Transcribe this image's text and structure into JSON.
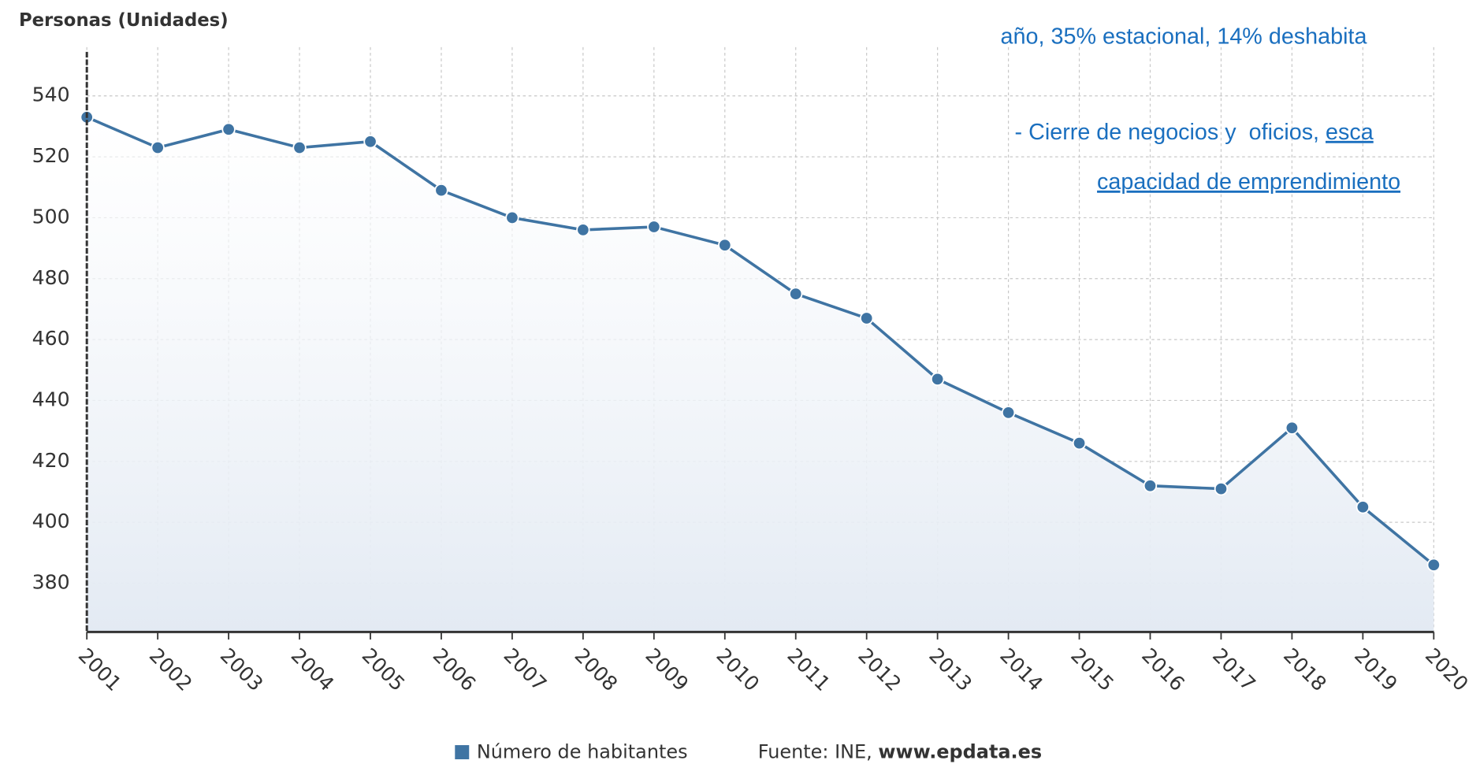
{
  "chart_data": {
    "type": "line",
    "y_label": "Personas (Unidades)",
    "x": [
      "2001",
      "2002",
      "2003",
      "2004",
      "2005",
      "2006",
      "2007",
      "2008",
      "2009",
      "2010",
      "2011",
      "2012",
      "2013",
      "2014",
      "2015",
      "2016",
      "2017",
      "2018",
      "2019",
      "2020"
    ],
    "series": [
      {
        "name": "Número de habitantes",
        "color": "#3f74a3",
        "values": [
          533,
          523,
          529,
          523,
          525,
          509,
          500,
          496,
          497,
          491,
          475,
          467,
          447,
          436,
          426,
          412,
          411,
          431,
          405,
          386
        ]
      }
    ],
    "ylim": [
      364,
      556
    ],
    "yticks": [
      380,
      400,
      420,
      440,
      460,
      480,
      500,
      520,
      540
    ],
    "grid": true,
    "source": "Fuente: INE,",
    "source_link": "www.epdata.es",
    "annotations": [
      "año, 35% estacional, 14% deshabita",
      "- Cierre de negocios y  oficios,",
      "esca",
      "capacidad de emprendimiento"
    ]
  }
}
